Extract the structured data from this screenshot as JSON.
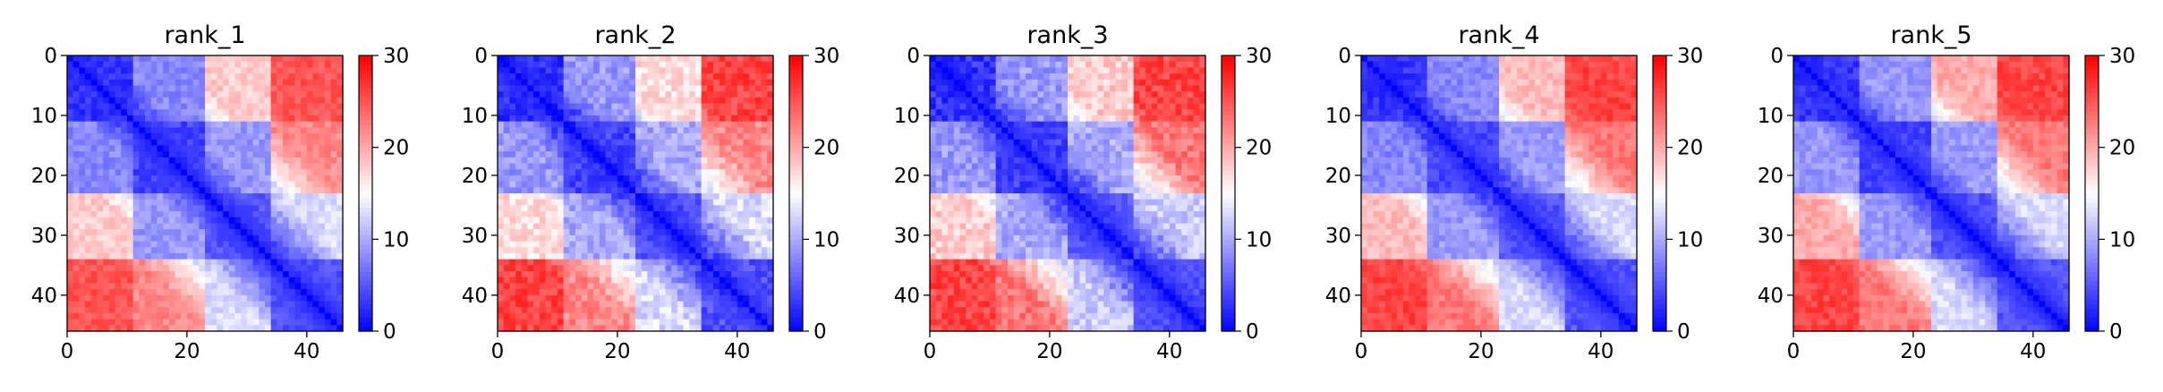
{
  "chart_data": [
    {
      "type": "heatmap",
      "title": "rank_1",
      "xlabel": "",
      "ylabel": "",
      "n": 46,
      "xlim": [
        0,
        46
      ],
      "ylim": [
        46,
        0
      ],
      "xticks": [
        0,
        20,
        40
      ],
      "yticks": [
        0,
        10,
        20,
        30,
        40
      ],
      "colorbar": {
        "min": 0,
        "max": 30,
        "ticks": [
          0,
          10,
          20,
          30
        ]
      },
      "colormap": "bwr",
      "blocks": [
        [
          0,
          11
        ],
        [
          11,
          23
        ],
        [
          23,
          34
        ],
        [
          34,
          46
        ]
      ],
      "block_values": [
        [
          3,
          8,
          18,
          25
        ],
        [
          8,
          4,
          9,
          22
        ],
        [
          18,
          9,
          5,
          13
        ],
        [
          25,
          22,
          13,
          5
        ]
      ],
      "noise": 1.5
    },
    {
      "type": "heatmap",
      "title": "rank_2",
      "xlabel": "",
      "ylabel": "",
      "n": 46,
      "xlim": [
        0,
        46
      ],
      "ylim": [
        46,
        0
      ],
      "xticks": [
        0,
        20,
        40
      ],
      "yticks": [
        0,
        10,
        20,
        30,
        40
      ],
      "colorbar": {
        "min": 0,
        "max": 30,
        "ticks": [
          0,
          10,
          20,
          30
        ]
      },
      "colormap": "bwr",
      "blocks": [
        [
          0,
          11
        ],
        [
          11,
          23
        ],
        [
          23,
          34
        ],
        [
          34,
          46
        ]
      ],
      "block_values": [
        [
          3,
          9,
          17,
          26
        ],
        [
          9,
          4,
          10,
          22
        ],
        [
          17,
          10,
          5,
          13
        ],
        [
          26,
          22,
          13,
          5
        ]
      ],
      "noise": 2.0
    },
    {
      "type": "heatmap",
      "title": "rank_3",
      "xlabel": "",
      "ylabel": "",
      "n": 46,
      "xlim": [
        0,
        46
      ],
      "ylim": [
        46,
        0
      ],
      "xticks": [
        0,
        20,
        40
      ],
      "yticks": [
        0,
        10,
        20,
        30,
        40
      ],
      "colorbar": {
        "min": 0,
        "max": 30,
        "ticks": [
          0,
          10,
          20,
          30
        ]
      },
      "colormap": "bwr",
      "blocks": [
        [
          0,
          11
        ],
        [
          11,
          23
        ],
        [
          23,
          34
        ],
        [
          34,
          46
        ]
      ],
      "block_values": [
        [
          3,
          9,
          18,
          26
        ],
        [
          9,
          4,
          10,
          23
        ],
        [
          18,
          10,
          5,
          12
        ],
        [
          26,
          23,
          12,
          5
        ]
      ],
      "noise": 2.0
    },
    {
      "type": "heatmap",
      "title": "rank_4",
      "xlabel": "",
      "ylabel": "",
      "n": 46,
      "xlim": [
        0,
        46
      ],
      "ylim": [
        46,
        0
      ],
      "xticks": [
        0,
        20,
        40
      ],
      "yticks": [
        0,
        10,
        20,
        30,
        40
      ],
      "colorbar": {
        "min": 0,
        "max": 30,
        "ticks": [
          0,
          10,
          20,
          30
        ]
      },
      "colormap": "bwr",
      "blocks": [
        [
          0,
          11
        ],
        [
          11,
          23
        ],
        [
          23,
          34
        ],
        [
          34,
          46
        ]
      ],
      "block_values": [
        [
          3,
          8,
          19,
          26
        ],
        [
          8,
          4,
          9,
          23
        ],
        [
          19,
          9,
          5,
          13
        ],
        [
          26,
          23,
          13,
          5
        ]
      ],
      "noise": 1.5
    },
    {
      "type": "heatmap",
      "title": "rank_5",
      "xlabel": "",
      "ylabel": "",
      "n": 46,
      "xlim": [
        0,
        46
      ],
      "ylim": [
        46,
        0
      ],
      "xticks": [
        0,
        20,
        40
      ],
      "yticks": [
        0,
        10,
        20,
        30,
        40
      ],
      "colorbar": {
        "min": 0,
        "max": 30,
        "ticks": [
          0,
          10,
          20,
          30
        ]
      },
      "colormap": "bwr",
      "blocks": [
        [
          0,
          11
        ],
        [
          11,
          23
        ],
        [
          23,
          34
        ],
        [
          34,
          46
        ]
      ],
      "block_values": [
        [
          3,
          9,
          20,
          26
        ],
        [
          9,
          4,
          9,
          23
        ],
        [
          20,
          9,
          5,
          13
        ],
        [
          26,
          23,
          13,
          5
        ]
      ],
      "noise": 1.5
    }
  ]
}
